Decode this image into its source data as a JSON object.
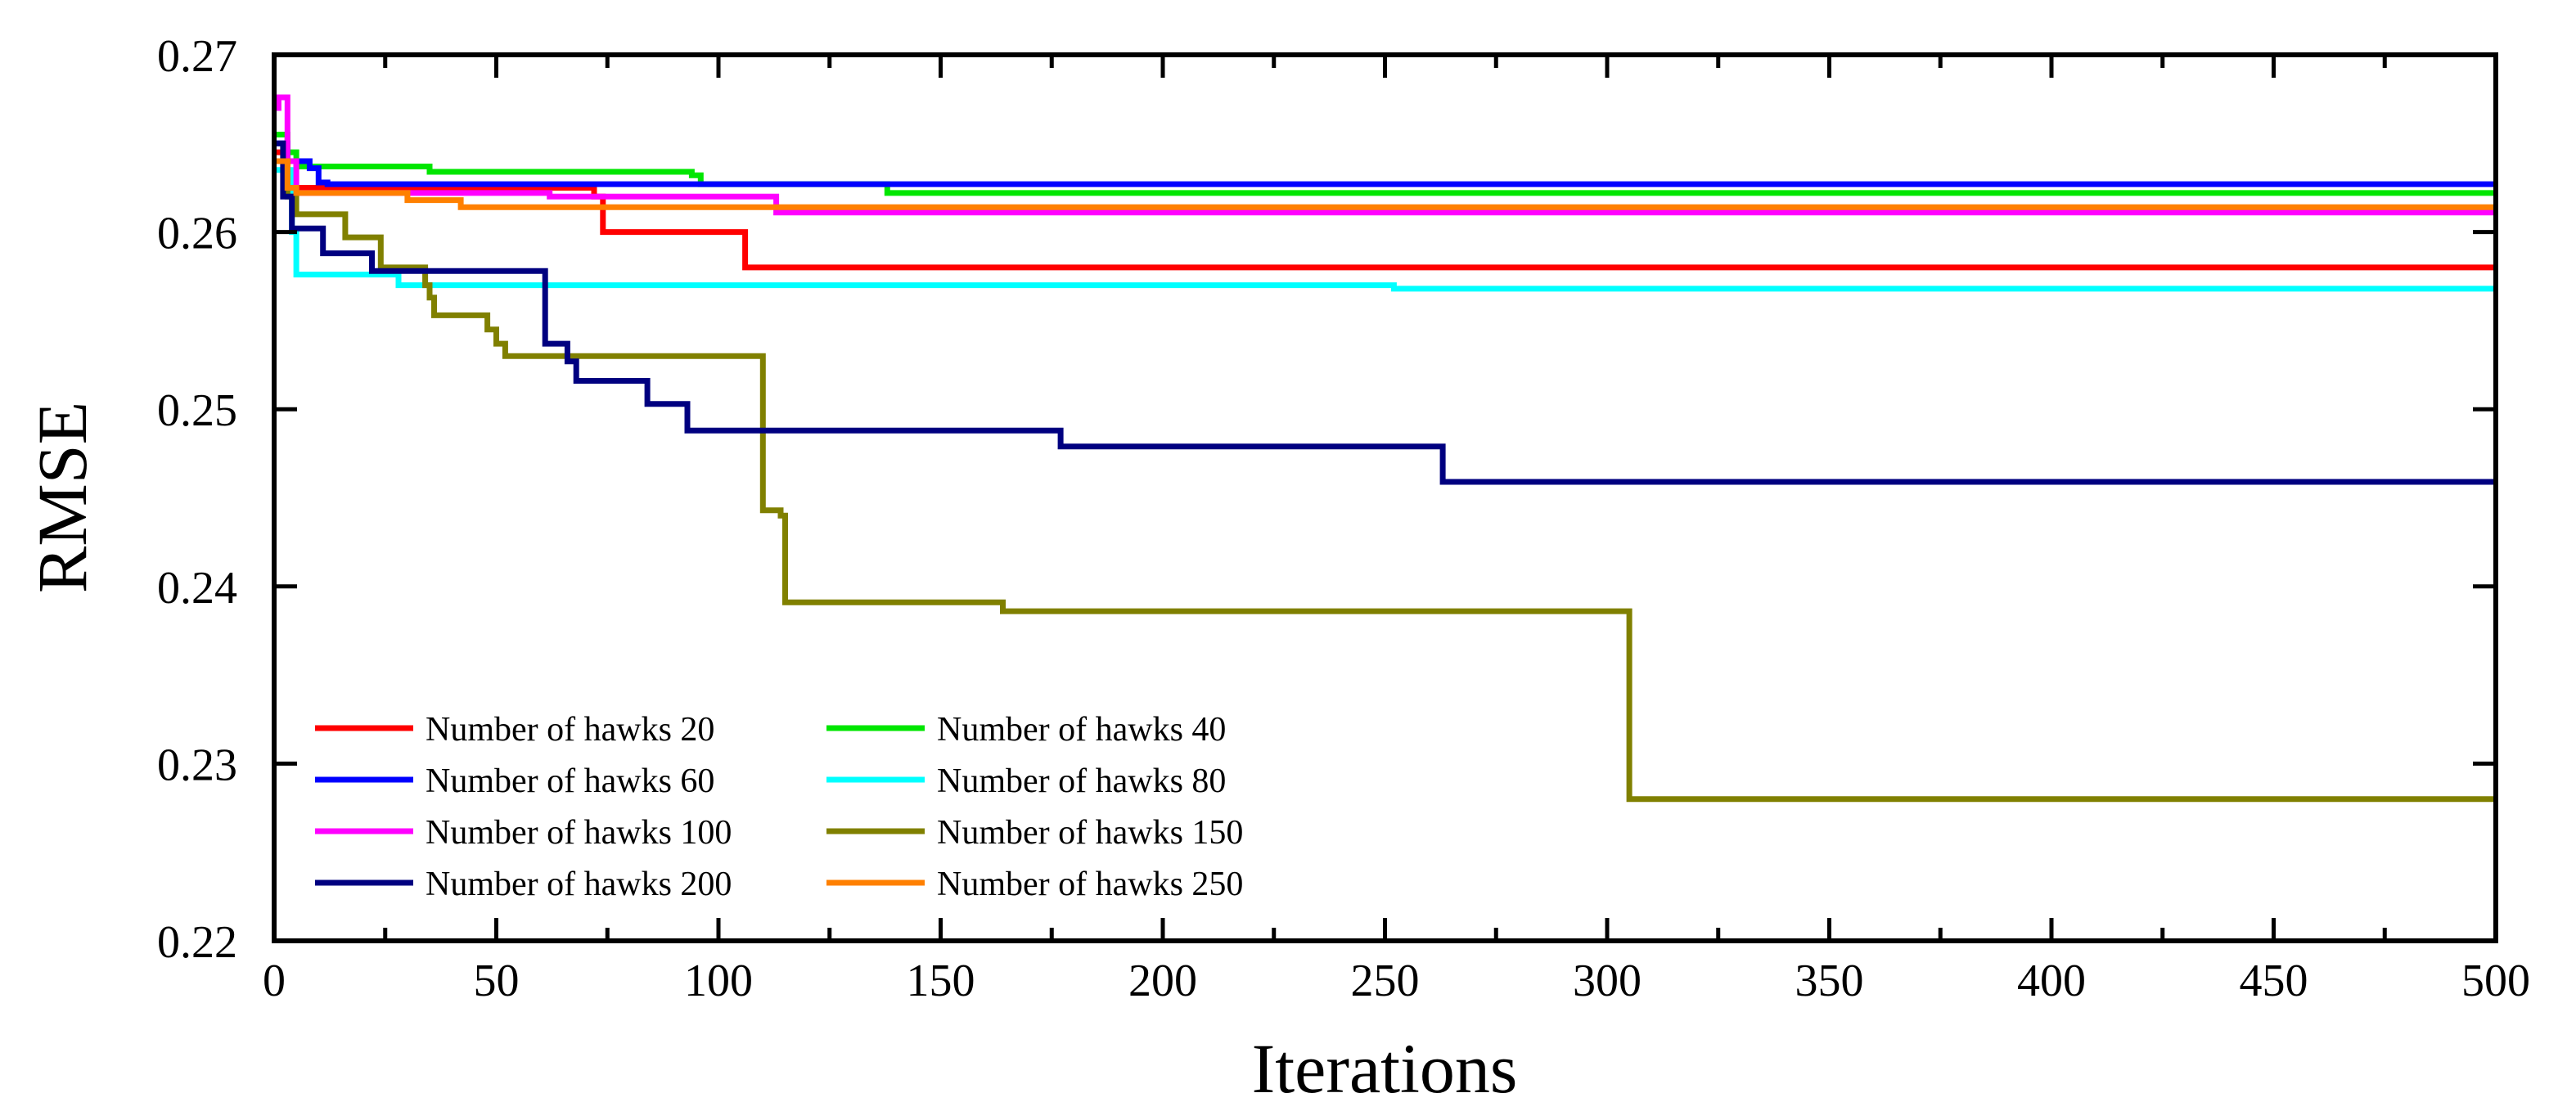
{
  "chart_data": {
    "type": "line",
    "title": "",
    "xlabel": "Iterations",
    "ylabel": "RMSE",
    "xlim": [
      0,
      500
    ],
    "ylim": [
      0.22,
      0.27
    ],
    "xticks": [
      0,
      50,
      100,
      150,
      200,
      250,
      300,
      350,
      400,
      450,
      500
    ],
    "yticks": [
      0.22,
      0.23,
      0.24,
      0.25,
      0.26,
      0.27
    ],
    "xtick_labels": [
      "0",
      "50",
      "100",
      "150",
      "200",
      "250",
      "300",
      "350",
      "400",
      "450",
      "500"
    ],
    "ytick_labels": [
      "0.22",
      "0.23",
      "0.24",
      "0.25",
      "0.26",
      "0.27"
    ],
    "grid": false,
    "legend": {
      "placement": "bottom-left",
      "columns": 2
    },
    "series": [
      {
        "name": "Number of hawks 20",
        "color": "#ff0000",
        "points": [
          [
            0,
            0.2645
          ],
          [
            3,
            0.2625
          ],
          [
            72,
            0.262
          ],
          [
            74,
            0.26
          ],
          [
            104,
            0.26
          ],
          [
            106,
            0.258
          ],
          [
            500,
            0.258
          ]
        ]
      },
      {
        "name": "Number of hawks 40",
        "color": "#00e600",
        "points": [
          [
            0,
            0.2655
          ],
          [
            3,
            0.2645
          ],
          [
            5,
            0.2637
          ],
          [
            33,
            0.2637
          ],
          [
            35,
            0.2634
          ],
          [
            85,
            0.2634
          ],
          [
            94,
            0.2632
          ],
          [
            96,
            0.2627
          ],
          [
            137,
            0.2627
          ],
          [
            138,
            0.2622
          ],
          [
            500,
            0.2622
          ]
        ]
      },
      {
        "name": "Number of hawks 60",
        "color": "#0000ff",
        "points": [
          [
            0,
            0.265
          ],
          [
            3,
            0.264
          ],
          [
            8,
            0.2636
          ],
          [
            10,
            0.2628
          ],
          [
            12,
            0.2627
          ],
          [
            500,
            0.2627
          ]
        ]
      },
      {
        "name": "Number of hawks 80",
        "color": "#00ffff",
        "points": [
          [
            0,
            0.2635
          ],
          [
            4,
            0.26
          ],
          [
            5,
            0.2576
          ],
          [
            25,
            0.2576
          ],
          [
            28,
            0.257
          ],
          [
            250,
            0.257
          ],
          [
            252,
            0.2568
          ],
          [
            500,
            0.2568
          ]
        ]
      },
      {
        "name": "Number of hawks 100",
        "color": "#ff00ff",
        "points": [
          [
            0,
            0.267
          ],
          [
            1,
            0.2676
          ],
          [
            3,
            0.264
          ],
          [
            5,
            0.2622
          ],
          [
            60,
            0.2622
          ],
          [
            62,
            0.262
          ],
          [
            110,
            0.262
          ],
          [
            113,
            0.2611
          ],
          [
            500,
            0.2611
          ]
        ]
      },
      {
        "name": "Number of hawks 150",
        "color": "#808000",
        "points": [
          [
            0,
            0.264
          ],
          [
            3,
            0.262
          ],
          [
            5,
            0.261
          ],
          [
            14,
            0.261
          ],
          [
            16,
            0.2597
          ],
          [
            22,
            0.2597
          ],
          [
            24,
            0.258
          ],
          [
            30,
            0.258
          ],
          [
            34,
            0.257
          ],
          [
            35,
            0.2563
          ],
          [
            36,
            0.2553
          ],
          [
            46,
            0.2553
          ],
          [
            48,
            0.2545
          ],
          [
            50,
            0.2537
          ],
          [
            52,
            0.253
          ],
          [
            108,
            0.253
          ],
          [
            110,
            0.2443
          ],
          [
            112,
            0.2443
          ],
          [
            114,
            0.244
          ],
          [
            115,
            0.2391
          ],
          [
            162,
            0.2391
          ],
          [
            164,
            0.2386
          ],
          [
            303,
            0.2386
          ],
          [
            305,
            0.228
          ],
          [
            500,
            0.228
          ]
        ]
      },
      {
        "name": "Number of hawks 200",
        "color": "#000080",
        "points": [
          [
            0,
            0.265
          ],
          [
            2,
            0.262
          ],
          [
            4,
            0.2602
          ],
          [
            9,
            0.2602
          ],
          [
            11,
            0.2588
          ],
          [
            20,
            0.2588
          ],
          [
            22,
            0.2578
          ],
          [
            59,
            0.2578
          ],
          [
            61,
            0.2537
          ],
          [
            64,
            0.2537
          ],
          [
            66,
            0.2527
          ],
          [
            68,
            0.2516
          ],
          [
            81,
            0.2516
          ],
          [
            84,
            0.2503
          ],
          [
            91,
            0.2503
          ],
          [
            93,
            0.2488
          ],
          [
            175,
            0.2488
          ],
          [
            177,
            0.2479
          ],
          [
            261,
            0.2479
          ],
          [
            263,
            0.2459
          ],
          [
            500,
            0.2459
          ]
        ]
      },
      {
        "name": "Number of hawks 250",
        "color": "#ff8000",
        "points": [
          [
            0,
            0.264
          ],
          [
            3,
            0.2625
          ],
          [
            5,
            0.2622
          ],
          [
            28,
            0.2622
          ],
          [
            30,
            0.2618
          ],
          [
            40,
            0.2618
          ],
          [
            42,
            0.2614
          ],
          [
            500,
            0.2614
          ]
        ]
      }
    ]
  }
}
